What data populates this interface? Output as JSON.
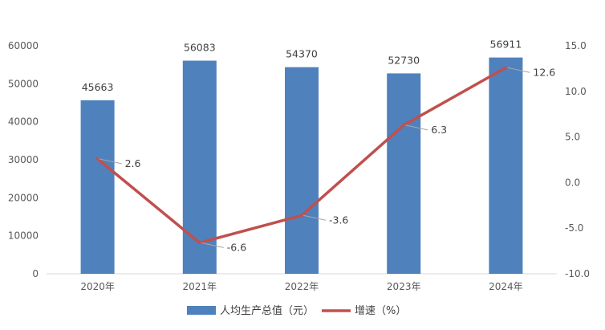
{
  "chart_data": {
    "type": "bar",
    "categories": [
      "2020年",
      "2021年",
      "2022年",
      "2023年",
      "2024年"
    ],
    "series": [
      {
        "name": "人均生产总值（元）",
        "type": "bar",
        "axis": "left",
        "color": "#4F81BD",
        "values": [
          45663,
          56083,
          54370,
          52730,
          56911
        ],
        "labels": [
          "45663",
          "56083",
          "54370",
          "52730",
          "56911"
        ]
      },
      {
        "name": "增速（%）",
        "type": "line",
        "axis": "right",
        "color": "#C0504D",
        "values": [
          2.6,
          -6.6,
          -3.6,
          6.3,
          12.6
        ],
        "labels": [
          "2.6",
          "-6.6",
          "-3.6",
          "6.3",
          "12.6"
        ]
      }
    ],
    "y_left": {
      "lim": [
        0,
        60000
      ],
      "ticks": [
        0,
        10000,
        20000,
        30000,
        40000,
        50000,
        60000
      ],
      "tick_labels": [
        "0",
        "10000",
        "20000",
        "30000",
        "40000",
        "50000",
        "60000"
      ]
    },
    "y_right": {
      "lim": [
        -10,
        15
      ],
      "ticks": [
        -10,
        -5,
        0,
        5,
        10,
        15
      ],
      "tick_labels": [
        "-10.0",
        "-5.0",
        "0.0",
        "5.0",
        "10.0",
        "15.0"
      ]
    },
    "grid": false,
    "legend_position": "bottom"
  }
}
